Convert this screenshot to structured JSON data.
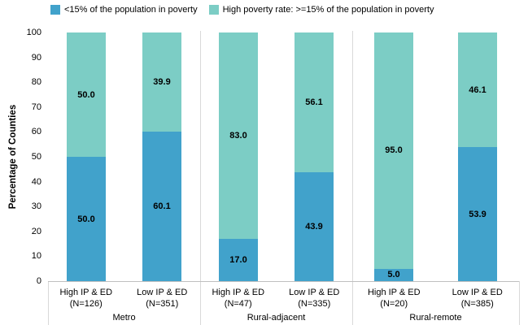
{
  "chart_data": {
    "type": "bar",
    "variant": "stacked-vertical-100pct",
    "title": "",
    "ylabel": "Percentage of Counties",
    "xlabel": "",
    "ylim": [
      0,
      100
    ],
    "ytick_step": 10,
    "grid": false,
    "legend_position": "top",
    "categories": [
      "High IP & ED (N=126)",
      "Low IP & ED (N=351)",
      "High IP & ED (N=47)",
      "Low IP & ED (N=335)",
      "High IP & ED (N=20)",
      "Low IP & ED (N=385)"
    ],
    "group_labels": [
      "Metro",
      "Rural-adjacent",
      "Rural-remote"
    ],
    "series": [
      {
        "name": "<15% of the population in poverty",
        "color": "#41A2CB",
        "values": [
          50.0,
          60.1,
          17.0,
          43.9,
          5.0,
          53.9
        ]
      },
      {
        "name": "High poverty rate: >=15% of the population in poverty",
        "color": "#7CCDC5",
        "values": [
          50.0,
          39.9,
          83.0,
          56.1,
          95.0,
          46.1
        ]
      }
    ],
    "groups": [
      {
        "label": "Metro",
        "bars": [
          {
            "category": "High IP & ED",
            "n": "(N=126)",
            "segments": [
              50.0,
              50.0
            ]
          },
          {
            "category": "Low IP & ED",
            "n": "(N=351)",
            "segments": [
              60.1,
              39.9
            ]
          }
        ]
      },
      {
        "label": "Rural-adjacent",
        "bars": [
          {
            "category": "High IP & ED",
            "n": "(N=47)",
            "segments": [
              17.0,
              83.0
            ]
          },
          {
            "category": "Low IP & ED",
            "n": "(N=335)",
            "segments": [
              43.9,
              56.1
            ]
          }
        ]
      },
      {
        "label": "Rural-remote",
        "bars": [
          {
            "category": "High IP & ED",
            "n": "(N=20)",
            "segments": [
              5.0,
              95.0
            ]
          },
          {
            "category": "Low IP & ED",
            "n": "(N=385)",
            "segments": [
              53.9,
              46.1
            ]
          }
        ]
      }
    ]
  },
  "colors": {
    "low_poverty_blue": "#41A2CB",
    "high_poverty_teal": "#7CCDC5",
    "axis_line": "#BFBFBF",
    "group_separator": "#D9D9D9",
    "text": "#000000"
  }
}
